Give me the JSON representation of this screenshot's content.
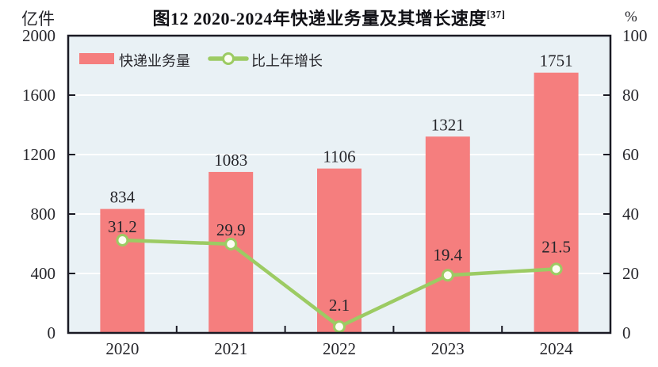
{
  "title": {
    "text": "图12  2020-2024年快递业务量及其增长速度",
    "superscript": "[37]"
  },
  "legend": {
    "items": [
      {
        "label": "快递业务量",
        "swatch": "bar"
      },
      {
        "label": "比上年增长",
        "swatch": "line-with-open-circle-marker"
      }
    ]
  },
  "colors": {
    "bar": "#F57E7E",
    "line": "#9CCB63",
    "marker_fill": "#FCFDF2",
    "plot_bg": "#E9F1F5",
    "grid": "#FFFFFF",
    "axis": "#1A1A24",
    "text": "#26262B"
  },
  "chart_data": {
    "type": "bar+line",
    "title": "图12 2020-2024年快递业务量及其增长速度 [37]",
    "categories": [
      "2020",
      "2021",
      "2022",
      "2023",
      "2024"
    ],
    "series": [
      {
        "name": "快递业务量",
        "type": "bar",
        "axis": "left",
        "unit": "亿件",
        "values": [
          834,
          1083,
          1106,
          1321,
          1751
        ],
        "labels": [
          "834",
          "1083",
          "1106",
          "1321",
          "1751"
        ],
        "color": "#F57E7E"
      },
      {
        "name": "比上年增长",
        "type": "line",
        "axis": "right",
        "unit": "%",
        "values": [
          31.2,
          29.9,
          2.1,
          19.4,
          21.5
        ],
        "labels": [
          "31.2",
          "29.9",
          "2.1",
          "19.4",
          "21.5"
        ],
        "color": "#9CCB63",
        "marker": "open-circle"
      }
    ],
    "left_axis": {
      "label": "亿件",
      "ticks": [
        0,
        400,
        800,
        1200,
        1600,
        2000
      ],
      "range": [
        0,
        2000
      ]
    },
    "right_axis": {
      "label": "%",
      "ticks": [
        0,
        20,
        40,
        60,
        80,
        100
      ],
      "range": [
        0,
        100
      ]
    },
    "grid": "horizontal white gridlines on light-blue plot background",
    "legend_position": "top-left inside plot area"
  }
}
